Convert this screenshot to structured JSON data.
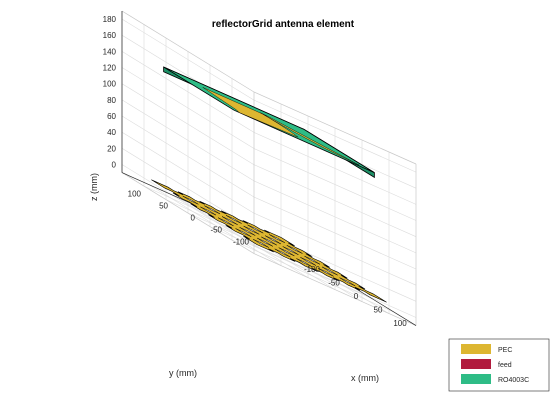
{
  "chart_data": {
    "type": "3d-surface",
    "title": "reflectorGrid antenna element",
    "xlabel": "x (mm)",
    "ylabel": "y (mm)",
    "zlabel": "z (mm)",
    "xlim": [
      -150,
      150
    ],
    "ylim": [
      -150,
      150
    ],
    "zlim": [
      -10,
      190
    ],
    "xticks": [
      -100,
      -50,
      0,
      50,
      100
    ],
    "yticks": [
      -100,
      -50,
      0,
      50,
      100
    ],
    "zticks": [
      0,
      20,
      40,
      60,
      80,
      100,
      120,
      140,
      160,
      180
    ],
    "grid": true,
    "legend_position": "bottom-right",
    "legend": [
      {
        "name": "PEC",
        "color": "#DDB631"
      },
      {
        "name": "feed",
        "color": "#B11B3E"
      },
      {
        "name": "RO4003C",
        "color": "#2EBC86"
      }
    ],
    "reflector_grid": {
      "z": 0,
      "x_extent": [
        -120,
        120
      ],
      "y_extent": [
        -120,
        120
      ],
      "holes_per_side": 5,
      "hole_pitch": 40,
      "hole_size": 16
    },
    "substrate": {
      "z": 150,
      "x_extent": [
        -80,
        80
      ],
      "y_extent": [
        -130,
        130
      ]
    }
  }
}
